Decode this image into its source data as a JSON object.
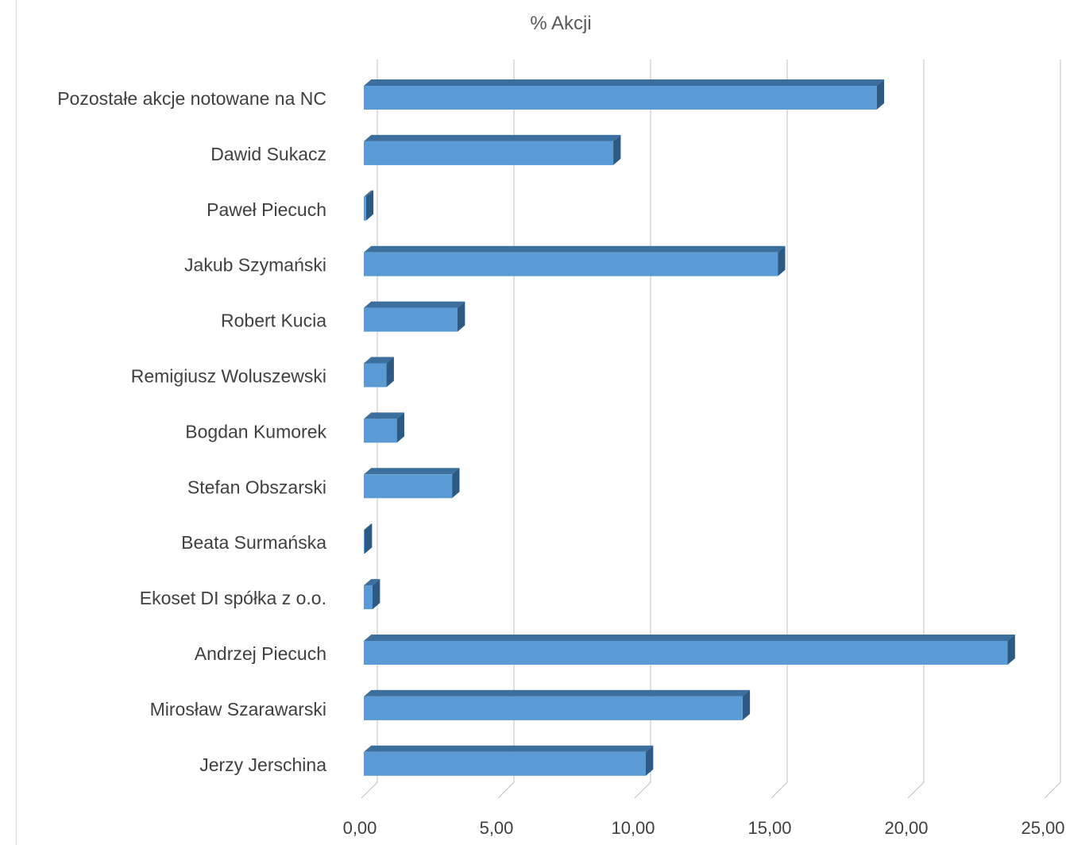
{
  "chart_data": {
    "type": "bar",
    "orientation": "horizontal",
    "title": "% Akcji",
    "xlim": [
      0,
      25
    ],
    "x_ticks": [
      "0,00",
      "5,00",
      "10,00",
      "15,00",
      "20,00",
      "25,00"
    ],
    "grid": true,
    "colors": {
      "bar_front": "#5b9bd5",
      "bar_top": "#3d6f9e",
      "bar_side": "#2e5a82",
      "grid": "#bfbfbf",
      "label": "#404040",
      "title": "#595959"
    },
    "categories": [
      "Pozostałe akcje notowane na NC",
      "Dawid Sukacz",
      "Paweł Piecuch",
      "Jakub Szymański",
      "Robert Kucia",
      "Remigiusz Woluszewski",
      "Bogdan Kumorek",
      "Stefan Obszarski",
      "Beata Surmańska",
      "Ekoset DI spółka z o.o.",
      "Andrzej Piecuch",
      "Mirosław Szarawarski",
      "Jerzy Jerschina"
    ],
    "values": [
      18.77,
      9.13,
      0.08,
      15.15,
      3.43,
      0.83,
      1.21,
      3.23,
      0.02,
      0.32,
      23.56,
      13.86,
      10.32
    ]
  }
}
